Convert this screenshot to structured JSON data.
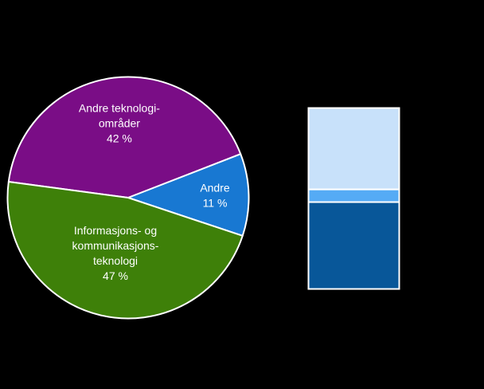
{
  "figure": {
    "background_color": "#000000",
    "text_color": "#FFFFFF",
    "border_color": "#FFFFFF"
  },
  "chart_data": [
    {
      "type": "pie",
      "title": "",
      "legend": "none",
      "labels_on_slices": true,
      "label_color": "#FFFFFF",
      "slice_border_color": "#FFFFFF",
      "slices": [
        {
          "name": "andre-teknologi-omrader",
          "label": "Andre teknologi-områder",
          "label_lines": [
            "Andre teknologi-",
            "områder"
          ],
          "value_pct": 42,
          "value_label": "42 %",
          "color": "#7A0D86"
        },
        {
          "name": "andre",
          "label": "Andre",
          "label_lines": [
            "Andre"
          ],
          "value_pct": 11,
          "value_label": "11 %",
          "color": "#1878D2"
        },
        {
          "name": "informasjons-og-kommunikasjonsteknologi",
          "label": "Informasjons- og kommunikasjonsteknologi",
          "label_lines": [
            "Informasjons- og",
            "kommunikasjons-",
            "teknologi"
          ],
          "value_pct": 47,
          "value_label": "47 %",
          "color": "#3E8009"
        }
      ]
    },
    {
      "type": "stacked-bar",
      "title": "",
      "axis": "none",
      "bar_border_color": "#FFFFFF",
      "segments_top_to_bottom": [
        {
          "name": "top-light-blue",
          "value_pct": 45,
          "color": "#C8E1FA"
        },
        {
          "name": "middle-medium-blue",
          "value_pct": 7,
          "color": "#55ABF5"
        },
        {
          "name": "bottom-dark-blue",
          "value_pct": 48,
          "color": "#085799"
        }
      ]
    }
  ]
}
